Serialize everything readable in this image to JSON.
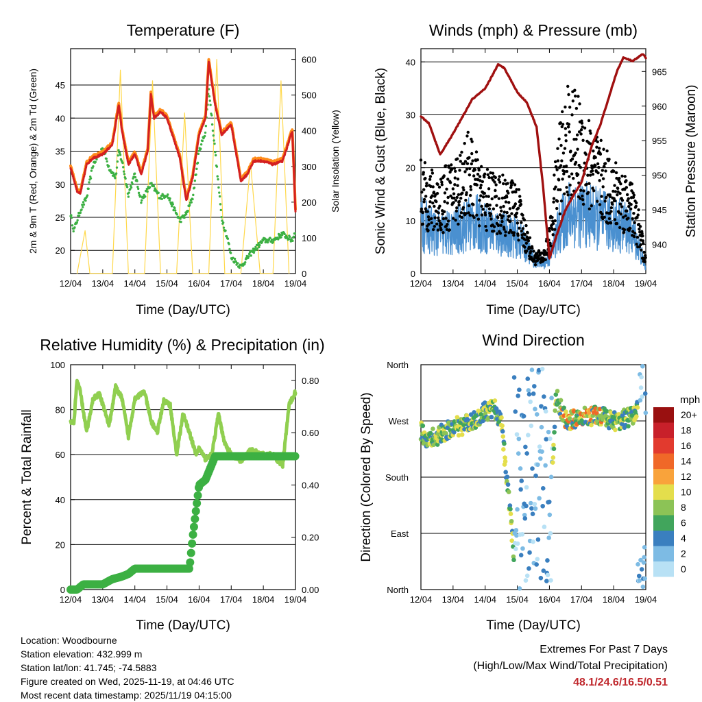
{
  "colors": {
    "t2": "#ff8c1a",
    "t9": "#d42020",
    "td": "#3cb043",
    "solar": "#ffd84a",
    "wind": "#4a90d0",
    "gust": "#000000",
    "pressure": "#a01010",
    "rh": "#90cf50",
    "rain": "#3cb043",
    "extremes": "#c0282d"
  },
  "chart_data": [
    {
      "id": "temperature",
      "type": "line",
      "title": "Temperature (F)",
      "xlabel": "Time (Day/UTC)",
      "ylabel": "2m & 9m T (Red, Orange) & 2m Td (Green)",
      "y2label": "Solar Insolation (Yellow)",
      "x_ticks": [
        "12/04",
        "13/04",
        "14/04",
        "15/04",
        "16/04",
        "17/04",
        "18/04",
        "19/04"
      ],
      "ylim": [
        16.5,
        50.5
      ],
      "y_ticks": [
        "20",
        "25",
        "30",
        "35",
        "40",
        "45"
      ],
      "y2lim": [
        0,
        630
      ],
      "y2_ticks": [
        "0",
        "100",
        "200",
        "300",
        "400",
        "500",
        "600"
      ],
      "series": [
        {
          "name": "2m T",
          "x": [
            0,
            0.2,
            0.3,
            0.5,
            0.7,
            1.0,
            1.3,
            1.5,
            1.6,
            1.8,
            2.0,
            2.2,
            2.4,
            2.5,
            2.6,
            2.8,
            3.0,
            3.2,
            3.4,
            3.6,
            3.8,
            4.0,
            4.2,
            4.3,
            4.5,
            4.7,
            5.0,
            5.3,
            5.5,
            5.7,
            6.0,
            6.3,
            6.6,
            6.9,
            7.0
          ],
          "values": [
            32.5,
            29.0,
            28.5,
            33.0,
            34.0,
            34.5,
            36.0,
            42.0,
            38.0,
            33.0,
            34.5,
            31.5,
            35.0,
            43.5,
            40.0,
            41.0,
            40.0,
            37.0,
            34.0,
            27.5,
            31.0,
            37.5,
            40.0,
            48.5,
            42.0,
            37.5,
            39.0,
            30.5,
            31.5,
            33.5,
            33.5,
            33.0,
            33.5,
            38.0,
            26.0
          ]
        },
        {
          "name": "2m Td",
          "x": [
            0,
            0.1,
            0.2,
            0.3,
            0.5,
            0.7,
            1.0,
            1.2,
            1.4,
            1.5,
            1.6,
            1.8,
            2.0,
            2.2,
            2.5,
            2.8,
            3.0,
            3.2,
            3.4,
            3.6,
            3.8,
            4.0,
            4.2,
            4.3,
            4.5,
            4.7,
            4.9,
            5.0,
            5.3,
            5.6,
            6.0,
            6.3,
            6.6,
            6.9,
            7.0
          ],
          "values": [
            25.5,
            23.0,
            24.5,
            26.0,
            28.0,
            33.0,
            35.5,
            32.5,
            31.0,
            35.0,
            33.5,
            28.5,
            31.5,
            27.5,
            30.0,
            28.0,
            28.5,
            26.5,
            24.5,
            25.5,
            28.0,
            35.0,
            38.0,
            44.5,
            35.0,
            25.0,
            21.5,
            19.0,
            17.5,
            19.5,
            21.5,
            21.5,
            22.5,
            21.5,
            23.0
          ]
        },
        {
          "name": "Solar Insolation",
          "x": [
            0.2,
            0.45,
            0.6,
            1.3,
            1.55,
            1.8,
            2.3,
            2.55,
            2.8,
            3.3,
            3.55,
            3.8,
            4.3,
            4.55,
            4.8,
            5.3,
            5.6,
            5.9,
            6.3,
            6.55,
            6.8
          ],
          "values": [
            0,
            120,
            0,
            0,
            570,
            0,
            0,
            540,
            0,
            0,
            450,
            0,
            0,
            600,
            0,
            0,
            310,
            0,
            0,
            540,
            0
          ]
        }
      ]
    },
    {
      "id": "winds",
      "type": "scatter",
      "title": "Winds (mph) & Pressure (mb)",
      "xlabel": "Time (Day/UTC)",
      "ylabel": "Sonic Wind & Gust (Blue, Black)",
      "y2label": "Station Pressure (Maroon)",
      "x_ticks": [
        "12/04",
        "13/04",
        "14/04",
        "15/04",
        "16/04",
        "17/04",
        "18/04",
        "19/04"
      ],
      "ylim": [
        0,
        42.5
      ],
      "y_ticks": [
        "0",
        "10",
        "20",
        "30",
        "40"
      ],
      "y2lim": [
        935.8,
        968.3
      ],
      "y2_ticks": [
        "940",
        "945",
        "950",
        "955",
        "960",
        "965"
      ],
      "series": [
        {
          "name": "Sonic Wind",
          "x": [
            0,
            0.5,
            1.0,
            1.5,
            1.8,
            2.0,
            2.5,
            3.0,
            3.2,
            3.5,
            3.8,
            4.0,
            4.3,
            4.6,
            5.0,
            5.5,
            6.0,
            6.5,
            6.8,
            7.0
          ],
          "values": [
            10,
            8,
            8,
            10,
            10,
            9,
            8,
            7,
            6,
            3,
            2,
            3,
            9,
            12,
            12,
            11,
            10,
            9,
            5,
            1
          ]
        },
        {
          "name": "Gust",
          "x": [
            0,
            0.5,
            1.0,
            1.5,
            1.8,
            2.0,
            2.5,
            3.0,
            3.2,
            3.5,
            3.8,
            4.0,
            4.3,
            4.6,
            5.0,
            5.5,
            6.0,
            6.5,
            6.8,
            7.0
          ],
          "values": [
            15,
            13,
            15,
            19,
            15,
            14,
            13,
            12,
            8,
            3,
            3,
            6,
            20,
            25,
            23,
            18,
            15,
            13,
            8,
            2
          ]
        },
        {
          "name": "Station Pressure",
          "x": [
            0,
            0.25,
            0.6,
            1.0,
            1.3,
            1.6,
            2.0,
            2.4,
            2.6,
            3.0,
            3.3,
            3.6,
            3.8,
            4.0,
            4.2,
            4.5,
            4.8,
            5.0,
            5.3,
            5.6,
            5.9,
            6.1,
            6.3,
            6.6,
            6.9,
            7.0
          ],
          "values": [
            958.5,
            957.5,
            953.0,
            956.0,
            958.5,
            961.0,
            962.5,
            966.0,
            965.5,
            962.0,
            960.5,
            957.0,
            948.5,
            938.0,
            941.0,
            945.0,
            947.5,
            949.0,
            954.0,
            957.5,
            962.0,
            965.0,
            967.0,
            966.5,
            967.5,
            967.0
          ]
        }
      ]
    },
    {
      "id": "humidity",
      "type": "line",
      "title": "Relative Humidity (%) & Precipitation (in)",
      "xlabel": "Time (Day/UTC)",
      "ylabel": "Percent & Total Rainfall",
      "x_ticks": [
        "12/04",
        "13/04",
        "14/04",
        "15/04",
        "16/04",
        "17/04",
        "18/04",
        "19/04"
      ],
      "ylim": [
        0,
        100
      ],
      "y_ticks": [
        "0",
        "20",
        "40",
        "60",
        "80",
        "100"
      ],
      "y2lim": [
        0,
        0.86
      ],
      "y2_ticks": [
        "0.00",
        "0.20",
        "0.40",
        "0.60",
        "0.80"
      ],
      "series": [
        {
          "name": "Relative Humidity",
          "x": [
            0,
            0.1,
            0.2,
            0.3,
            0.5,
            0.7,
            0.9,
            1.2,
            1.4,
            1.6,
            1.8,
            2.0,
            2.3,
            2.5,
            2.7,
            2.9,
            3.1,
            3.3,
            3.5,
            3.7,
            3.9,
            4.0,
            4.2,
            4.4,
            4.6,
            4.8,
            5.0,
            5.3,
            5.6,
            6.0,
            6.3,
            6.6,
            6.8,
            7.0
          ],
          "values": [
            75,
            74,
            93,
            88,
            70,
            85,
            87,
            73,
            90,
            85,
            68,
            85,
            88,
            75,
            70,
            84,
            82,
            60,
            78,
            70,
            60,
            63,
            58,
            60,
            78,
            65,
            60,
            57,
            62,
            60,
            60,
            55,
            82,
            88
          ]
        },
        {
          "name": "Total Precipitation",
          "x": [
            0,
            0.2,
            0.4,
            1.0,
            1.3,
            1.6,
            1.8,
            2.0,
            3.0,
            3.7,
            3.8,
            3.9,
            4.0,
            4.2,
            4.3,
            4.5,
            5.0,
            6.0,
            7.0
          ],
          "values": [
            0,
            0,
            0.02,
            0.02,
            0.04,
            0.05,
            0.06,
            0.08,
            0.08,
            0.08,
            0.2,
            0.3,
            0.4,
            0.42,
            0.45,
            0.51,
            0.51,
            0.51,
            0.51
          ]
        }
      ]
    },
    {
      "id": "wind_direction",
      "type": "scatter",
      "title": "Wind Direction",
      "xlabel": "Time (Day/UTC)",
      "ylabel": "Direction (Colored By Speed)",
      "x_ticks": [
        "12/04",
        "13/04",
        "14/04",
        "15/04",
        "16/04",
        "17/04",
        "18/04",
        "19/04"
      ],
      "y_ticks": [
        "North",
        "East",
        "South",
        "West",
        "North"
      ],
      "ylim": [
        0,
        360
      ],
      "colorbar": {
        "title": "mph",
        "labels": [
          "20+",
          "18",
          "16",
          "14",
          "12",
          "10",
          "8",
          "6",
          "4",
          "2",
          "0"
        ],
        "colors": [
          "#991010",
          "#c8202a",
          "#e23a2e",
          "#f06828",
          "#f9a33b",
          "#e4de4c",
          "#8cc356",
          "#41a55c",
          "#3a7fbf",
          "#7dbbe4",
          "#b8e1f5"
        ]
      },
      "series": [
        {
          "name": "Direction",
          "x": [
            0,
            0.2,
            0.5,
            1.0,
            1.5,
            2.0,
            2.3,
            2.5,
            3.0,
            3.1,
            3.2,
            3.3,
            3.5,
            3.7,
            3.8,
            4.0,
            4.2,
            4.5,
            5.0,
            5.5,
            6.0,
            6.5,
            6.8,
            6.9,
            7.0
          ],
          "values": [
            255,
            240,
            245,
            260,
            265,
            285,
            290,
            270,
            0,
            300,
            200,
            160,
            110,
            300,
            220,
            60,
            310,
            270,
            275,
            280,
            270,
            275,
            290,
            330,
            20
          ]
        }
      ]
    }
  ],
  "footer": {
    "location": "Location: Woodbourne",
    "elevation": "Station elevation: 432.999 m",
    "latlon": "Station lat/lon: 41.745; -74.5883",
    "created": "Figure created on Wed, 2025-11-19, at 04:46 UTC",
    "recent": "Most recent data timestamp: 2025/11/19 04:15:00"
  },
  "extremes": {
    "title": "Extremes For Past 7 Days",
    "subtitle": "(High/Low/Max Wind/Total Precipitation)",
    "values": "48.1/24.6/16.5/0.51"
  }
}
